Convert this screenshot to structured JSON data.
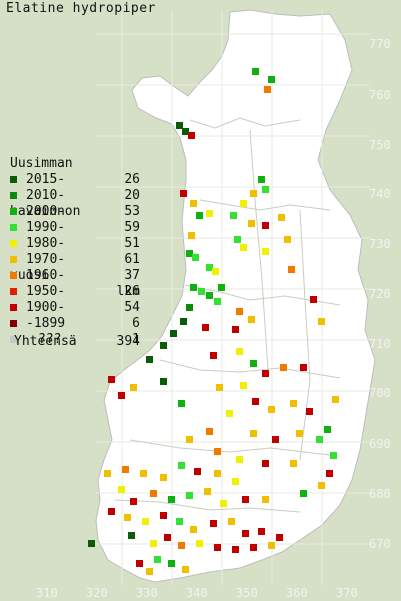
{
  "title": "Elatine hydropiper",
  "legend": {
    "header_line1": "Uusimman",
    "header_line2": "havainnon",
    "header_line3_left": "vuosi",
    "header_line3_right": "lkm",
    "items": [
      {
        "label": "2015-",
        "count": "26",
        "color": "#0a5b0a"
      },
      {
        "label": "2010-",
        "count": "20",
        "color": "#0b8a0b"
      },
      {
        "label": "2000-",
        "count": "53",
        "color": "#10b010"
      },
      {
        "label": "1990-",
        "count": "59",
        "color": "#35e035"
      },
      {
        "label": "1980-",
        "count": "51",
        "color": "#f0f000"
      },
      {
        "label": "1970-",
        "count": "61",
        "color": "#f0c000"
      },
      {
        "label": "1960-",
        "count": "37",
        "color": "#f07a00"
      },
      {
        "label": "1950-",
        "count": "26",
        "color": "#e02000"
      },
      {
        "label": "1900-",
        "count": "54",
        "color": "#c00000"
      },
      {
        "label": "-1899",
        "count": "6",
        "color": "#800000"
      },
      {
        "label": "???",
        "count": "1",
        "color": "#c8c8c8"
      }
    ],
    "total_label": "Yhteensä",
    "total_count": "394"
  },
  "axes": {
    "y_ticks": [
      "770",
      "760",
      "750",
      "740",
      "730",
      "720",
      "710",
      "700",
      "690",
      "680",
      "670"
    ],
    "x_ticks": [
      "310",
      "320",
      "330",
      "340",
      "350",
      "360",
      "370"
    ]
  },
  "colors": {
    "background": "#d6e0c6",
    "land": "#ffffff",
    "grid": "#e6ebe0",
    "border": "#bdbdbd"
  }
}
